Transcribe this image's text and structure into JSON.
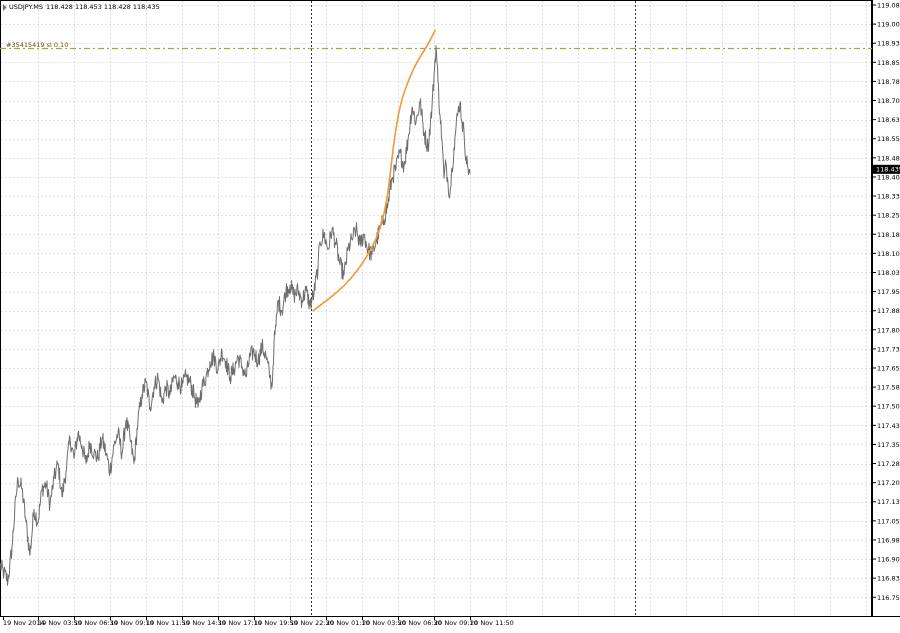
{
  "header": {
    "symbol": "USDJPY.MS",
    "ohlc": "118.428 118.453 118.428 118.435"
  },
  "order_label": "#35415419 sl 0.10",
  "colors": {
    "background": "#ffffff",
    "grid": "#c8c8c8",
    "price": "#6e6e6e",
    "curve": "#f09a3a",
    "stop_loss_line": "#a8a838",
    "bid_box": "#000000",
    "text": "#000000"
  },
  "chart_data": {
    "type": "line",
    "title": "",
    "xlabel": "",
    "ylabel": "",
    "ylim": [
      116.76,
      119.08
    ],
    "yticks": [
      "119.080",
      "119.005",
      "118.930",
      "118.855",
      "118.780",
      "118.705",
      "118.630",
      "118.555",
      "118.480",
      "118.405",
      "118.330",
      "118.255",
      "118.180",
      "118.105",
      "118.030",
      "117.955",
      "117.880",
      "117.805",
      "117.730",
      "117.655",
      "117.580",
      "117.505",
      "117.430",
      "117.355",
      "117.280",
      "117.205",
      "117.130",
      "117.055",
      "116.980",
      "116.905",
      "116.830",
      "116.755"
    ],
    "xticks": [
      "19 Nov 2014",
      "19 Nov 03:50",
      "19 Nov 06:30",
      "19 Nov 09:10",
      "19 Nov 11:50",
      "19 Nov 14:30",
      "19 Nov 17:10",
      "19 Nov 19:50",
      "19 Nov 22:30",
      "20 Nov 01:10",
      "20 Nov 03:50",
      "20 Nov 06:30",
      "20 Nov 09:10",
      "20 Nov 11:50"
    ],
    "current_price": "118.435",
    "stop_loss_level": 118.91,
    "series": [
      {
        "key": "price",
        "values": [
          [
            0,
            116.88
          ],
          [
            4,
            116.85
          ],
          [
            8,
            116.82
          ],
          [
            12,
            116.95
          ],
          [
            16,
            117.15
          ],
          [
            18,
            117.22
          ],
          [
            22,
            117.18
          ],
          [
            26,
            117.05
          ],
          [
            30,
            116.92
          ],
          [
            34,
            117.1
          ],
          [
            38,
            117.05
          ],
          [
            42,
            117.18
          ],
          [
            46,
            117.2
          ],
          [
            50,
            117.12
          ],
          [
            54,
            117.22
          ],
          [
            58,
            117.28
          ],
          [
            62,
            117.15
          ],
          [
            66,
            117.25
          ],
          [
            70,
            117.38
          ],
          [
            74,
            117.3
          ],
          [
            78,
            117.4
          ],
          [
            82,
            117.35
          ],
          [
            86,
            117.28
          ],
          [
            90,
            117.36
          ],
          [
            94,
            117.32
          ],
          [
            98,
            117.3
          ],
          [
            102,
            117.38
          ],
          [
            106,
            117.32
          ],
          [
            110,
            117.25
          ],
          [
            114,
            117.35
          ],
          [
            118,
            117.4
          ],
          [
            122,
            117.32
          ],
          [
            126,
            117.45
          ],
          [
            130,
            117.38
          ],
          [
            134,
            117.28
          ],
          [
            138,
            117.45
          ],
          [
            142,
            117.55
          ],
          [
            146,
            117.6
          ],
          [
            150,
            117.5
          ],
          [
            154,
            117.58
          ],
          [
            158,
            117.62
          ],
          [
            162,
            117.52
          ],
          [
            166,
            117.58
          ],
          [
            170,
            117.55
          ],
          [
            174,
            117.62
          ],
          [
            178,
            117.6
          ],
          [
            182,
            117.58
          ],
          [
            186,
            117.62
          ],
          [
            190,
            117.6
          ],
          [
            194,
            117.55
          ],
          [
            198,
            117.5
          ],
          [
            202,
            117.58
          ],
          [
            206,
            117.62
          ],
          [
            210,
            117.68
          ],
          [
            214,
            117.7
          ],
          [
            218,
            117.65
          ],
          [
            222,
            117.72
          ],
          [
            226,
            117.68
          ],
          [
            230,
            117.62
          ],
          [
            234,
            117.65
          ],
          [
            238,
            117.7
          ],
          [
            242,
            117.66
          ],
          [
            246,
            117.62
          ],
          [
            250,
            117.7
          ],
          [
            254,
            117.72
          ],
          [
            258,
            117.68
          ],
          [
            262,
            117.74
          ],
          [
            266,
            117.7
          ],
          [
            270,
            117.62
          ],
          [
            272,
            117.58
          ],
          [
            274,
            117.75
          ],
          [
            276,
            117.82
          ],
          [
            278,
            117.92
          ],
          [
            282,
            117.88
          ],
          [
            286,
            117.96
          ],
          [
            290,
            117.98
          ],
          [
            294,
            117.94
          ],
          [
            298,
            117.96
          ],
          [
            302,
            117.92
          ],
          [
            306,
            117.96
          ],
          [
            310,
            117.9
          ],
          [
            314,
            117.95
          ],
          [
            318,
            118.05
          ],
          [
            320,
            118.15
          ],
          [
            324,
            118.18
          ],
          [
            328,
            118.12
          ],
          [
            332,
            118.2
          ],
          [
            336,
            118.14
          ],
          [
            340,
            118.06
          ],
          [
            344,
            118.02
          ],
          [
            348,
            118.12
          ],
          [
            352,
            118.16
          ],
          [
            356,
            118.2
          ],
          [
            360,
            118.14
          ],
          [
            364,
            118.18
          ],
          [
            368,
            118.12
          ],
          [
            372,
            118.1
          ],
          [
            376,
            118.15
          ],
          [
            380,
            118.2
          ],
          [
            384,
            118.24
          ],
          [
            388,
            118.3
          ],
          [
            392,
            118.4
          ],
          [
            396,
            118.44
          ],
          [
            400,
            118.5
          ],
          [
            404,
            118.45
          ],
          [
            408,
            118.55
          ],
          [
            412,
            118.68
          ],
          [
            416,
            118.62
          ],
          [
            420,
            118.7
          ],
          [
            424,
            118.58
          ],
          [
            428,
            118.52
          ],
          [
            432,
            118.68
          ],
          [
            434,
            118.8
          ],
          [
            436,
            118.92
          ],
          [
            438,
            118.78
          ],
          [
            440,
            118.65
          ],
          [
            442,
            118.55
          ],
          [
            444,
            118.4
          ],
          [
            446,
            118.46
          ],
          [
            448,
            118.38
          ],
          [
            450,
            118.34
          ],
          [
            452,
            118.44
          ],
          [
            454,
            118.52
          ],
          [
            456,
            118.6
          ],
          [
            458,
            118.66
          ],
          [
            460,
            118.7
          ],
          [
            462,
            118.62
          ],
          [
            464,
            118.58
          ],
          [
            466,
            118.48
          ],
          [
            468,
            118.44
          ],
          [
            470,
            118.42
          ]
        ]
      },
      {
        "key": "curve",
        "values": [
          [
            313,
            117.88
          ],
          [
            330,
            117.93
          ],
          [
            345,
            117.98
          ],
          [
            358,
            118.04
          ],
          [
            368,
            118.1
          ],
          [
            376,
            118.16
          ],
          [
            383,
            118.24
          ],
          [
            388,
            118.34
          ],
          [
            392,
            118.48
          ],
          [
            396,
            118.6
          ],
          [
            401,
            118.7
          ],
          [
            408,
            118.78
          ],
          [
            416,
            118.85
          ],
          [
            424,
            118.9
          ],
          [
            430,
            118.94
          ],
          [
            435,
            118.98
          ]
        ]
      }
    ]
  }
}
